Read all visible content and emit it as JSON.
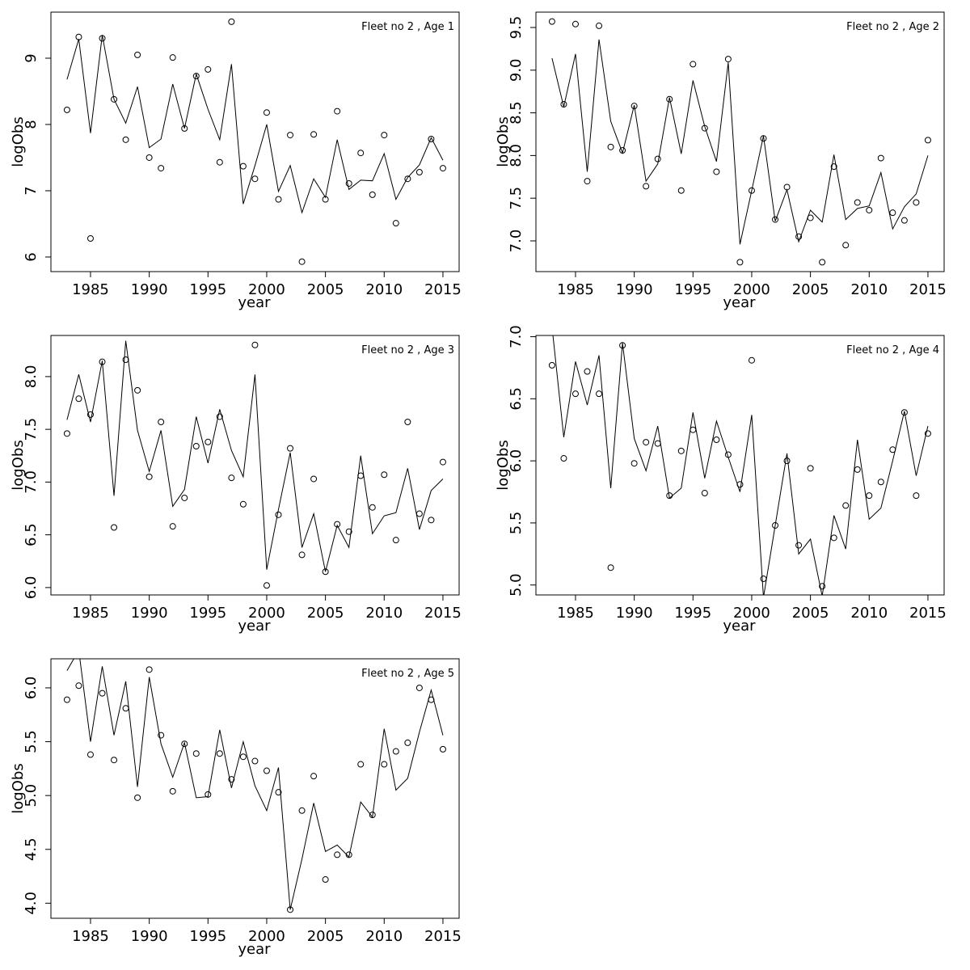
{
  "chart_data": [
    {
      "type": "line",
      "title": "Fleet no 2 , Age 1",
      "x_label": "year",
      "y_label": "logObs",
      "x": [
        1983,
        1984,
        1985,
        1986,
        1987,
        1988,
        1989,
        1990,
        1991,
        1992,
        1993,
        1994,
        1995,
        1996,
        1997,
        1998,
        1999,
        2000,
        2001,
        2002,
        2003,
        2004,
        2005,
        2006,
        2007,
        2008,
        2009,
        2010,
        2011,
        2012,
        2013,
        2014,
        2015
      ],
      "series": [
        {
          "style": "points",
          "color": "#000000",
          "values": [
            8.22,
            9.32,
            6.28,
            9.3,
            8.38,
            7.77,
            9.05,
            7.5,
            7.34,
            9.01,
            7.94,
            8.73,
            8.83,
            7.43,
            9.55,
            7.37,
            7.18,
            8.18,
            6.87,
            7.84,
            5.93,
            7.85,
            6.87,
            8.2,
            7.11,
            7.57,
            6.94,
            7.84,
            6.51,
            7.18,
            7.28,
            7.78,
            7.34
          ]
        },
        {
          "style": "line",
          "color": "#000000",
          "values": [
            8.68,
            9.29,
            7.87,
            9.35,
            8.38,
            8.02,
            8.57,
            7.65,
            7.78,
            8.61,
            7.94,
            8.76,
            8.23,
            7.77,
            8.91,
            6.8,
            7.38,
            8.0,
            6.99,
            7.38,
            6.67,
            7.18,
            6.9,
            7.77,
            7.02,
            7.16,
            7.15,
            7.56,
            6.87,
            7.2,
            7.39,
            7.8,
            7.46
          ]
        }
      ],
      "xlim": [
        1981.63,
        2016.38
      ],
      "xticks": [
        1985,
        1990,
        1995,
        2000,
        2005,
        2010,
        2015
      ],
      "ylim": [
        5.78,
        9.695
      ],
      "yticks": [
        6,
        7,
        8,
        9
      ]
    },
    {
      "type": "line",
      "title": "Fleet no 2 , Age 2",
      "x_label": "year",
      "y_label": "logObs",
      "x": [
        1983,
        1984,
        1985,
        1986,
        1987,
        1988,
        1989,
        1990,
        1991,
        1992,
        1993,
        1994,
        1995,
        1996,
        1997,
        1998,
        1999,
        2000,
        2001,
        2002,
        2003,
        2004,
        2005,
        2006,
        2007,
        2008,
        2009,
        2010,
        2011,
        2012,
        2013,
        2014,
        2015
      ],
      "series": [
        {
          "style": "points",
          "color": "#000000",
          "values": [
            9.57,
            8.6,
            9.54,
            7.7,
            9.52,
            8.1,
            8.06,
            8.58,
            7.64,
            7.96,
            8.66,
            7.59,
            9.07,
            8.32,
            7.81,
            9.13,
            6.75,
            7.59,
            8.2,
            7.25,
            7.63,
            7.05,
            7.27,
            6.75,
            7.87,
            6.95,
            7.45,
            7.36,
            7.97,
            7.33,
            7.24,
            7.45,
            8.18
          ]
        },
        {
          "style": "line",
          "color": "#000000",
          "values": [
            9.14,
            8.57,
            9.19,
            7.81,
            9.36,
            8.4,
            8.03,
            8.59,
            7.7,
            7.9,
            8.68,
            8.02,
            8.88,
            8.34,
            7.93,
            9.09,
            6.96,
            7.59,
            8.23,
            7.23,
            7.6,
            6.99,
            7.36,
            7.22,
            8.01,
            7.25,
            7.38,
            7.41,
            7.8,
            7.14,
            7.4,
            7.55,
            8.0
          ]
        }
      ],
      "xlim": [
        1981.63,
        2016.38
      ],
      "xticks": [
        1985,
        1990,
        1995,
        2000,
        2005,
        2010,
        2015
      ],
      "ylim": [
        6.64,
        9.68
      ],
      "yticks": [
        {
          "value": 7,
          "label": "7.0"
        },
        7.5,
        {
          "value": 8,
          "label": "8.0"
        },
        8.5,
        {
          "value": 9,
          "label": "9.0"
        },
        9.5
      ]
    },
    {
      "type": "line",
      "title": "Fleet no 2 , Age 3",
      "x_label": "year",
      "y_label": "logObs",
      "x": [
        1983,
        1984,
        1985,
        1986,
        1987,
        1988,
        1989,
        1990,
        1991,
        1992,
        1993,
        1994,
        1995,
        1996,
        1997,
        1998,
        1999,
        2000,
        2001,
        2002,
        2003,
        2004,
        2005,
        2006,
        2007,
        2008,
        2009,
        2010,
        2011,
        2012,
        2013,
        2014,
        2015
      ],
      "series": [
        {
          "style": "points",
          "color": "#000000",
          "values": [
            7.46,
            7.79,
            7.64,
            8.14,
            6.57,
            8.16,
            7.87,
            7.05,
            7.57,
            6.58,
            6.85,
            7.34,
            7.38,
            7.62,
            7.04,
            6.79,
            8.3,
            6.02,
            6.69,
            7.32,
            6.31,
            7.03,
            6.15,
            6.6,
            6.53,
            7.06,
            6.76,
            7.07,
            6.45,
            7.57,
            6.7,
            6.64,
            7.19
          ]
        },
        {
          "style": "line",
          "color": "#000000",
          "values": [
            7.59,
            8.02,
            7.57,
            8.15,
            6.87,
            8.34,
            7.49,
            7.1,
            7.49,
            6.77,
            6.93,
            7.62,
            7.18,
            7.69,
            7.3,
            7.05,
            8.02,
            6.17,
            6.74,
            7.28,
            6.38,
            6.7,
            6.15,
            6.59,
            6.38,
            7.25,
            6.51,
            6.68,
            6.71,
            7.13,
            6.55,
            6.92,
            7.03
          ]
        }
      ],
      "xlim": [
        1981.63,
        2016.38
      ],
      "xticks": [
        1985,
        1990,
        1995,
        2000,
        2005,
        2010,
        2015
      ],
      "ylim": [
        5.93,
        8.39
      ],
      "yticks": [
        {
          "value": 6,
          "label": "6.0"
        },
        6.5,
        {
          "value": 7,
          "label": "7.0"
        },
        7.5,
        {
          "value": 8,
          "label": "8.0"
        }
      ]
    },
    {
      "type": "line",
      "title": "Fleet no 2 , Age 4",
      "x_label": "year",
      "y_label": "logObs",
      "x": [
        1983,
        1984,
        1985,
        1986,
        1987,
        1988,
        1989,
        1990,
        1991,
        1992,
        1993,
        1994,
        1995,
        1996,
        1997,
        1998,
        1999,
        2000,
        2001,
        2002,
        2003,
        2004,
        2005,
        2006,
        2007,
        2008,
        2009,
        2010,
        2011,
        2012,
        2013,
        2014,
        2015
      ],
      "series": [
        {
          "style": "points",
          "color": "#000000",
          "values": [
            6.77,
            6.02,
            6.54,
            6.72,
            6.54,
            5.14,
            6.93,
            5.98,
            6.15,
            6.14,
            5.72,
            6.08,
            6.25,
            5.74,
            6.17,
            6.05,
            5.81,
            6.81,
            5.05,
            5.48,
            6.0,
            5.32,
            5.94,
            4.99,
            5.38,
            5.64,
            5.93,
            5.72,
            5.83,
            6.09,
            6.39,
            5.72,
            6.22
          ]
        },
        {
          "style": "line",
          "color": "#000000",
          "values": [
            7.08,
            6.19,
            6.8,
            6.45,
            6.85,
            5.78,
            6.95,
            6.18,
            5.92,
            6.28,
            5.7,
            5.78,
            6.39,
            5.86,
            6.32,
            6.03,
            5.75,
            6.37,
            4.9,
            5.48,
            6.06,
            5.25,
            5.37,
            4.91,
            5.56,
            5.29,
            6.17,
            5.53,
            5.62,
            6.0,
            6.4,
            5.88,
            6.28
          ]
        }
      ],
      "xlim": [
        1981.63,
        2016.38
      ],
      "xticks": [
        1985,
        1990,
        1995,
        2000,
        2005,
        2010,
        2015
      ],
      "ylim": [
        4.92,
        7.01
      ],
      "yticks": [
        {
          "value": 5,
          "label": "5.0"
        },
        5.5,
        {
          "value": 6,
          "label": "6.0"
        },
        6.5,
        {
          "value": 7,
          "label": "7.0"
        }
      ]
    },
    {
      "type": "line",
      "title": "Fleet no 2 , Age 5",
      "x_label": "year",
      "y_label": "logObs",
      "x": [
        1983,
        1984,
        1985,
        1986,
        1987,
        1988,
        1989,
        1990,
        1991,
        1992,
        1993,
        1994,
        1995,
        1996,
        1997,
        1998,
        1999,
        2000,
        2001,
        2002,
        2003,
        2004,
        2005,
        2006,
        2007,
        2008,
        2009,
        2010,
        2011,
        2012,
        2013,
        2014,
        2015
      ],
      "series": [
        {
          "style": "points",
          "color": "#000000",
          "values": [
            5.89,
            6.02,
            5.38,
            5.95,
            5.33,
            5.81,
            4.98,
            6.17,
            5.56,
            5.04,
            5.48,
            5.39,
            5.01,
            5.39,
            5.15,
            5.36,
            5.32,
            5.23,
            5.03,
            3.94,
            4.86,
            5.18,
            4.22,
            4.45,
            4.45,
            5.29,
            4.82,
            5.29,
            5.41,
            5.49,
            6.0,
            5.89,
            5.43
          ]
        },
        {
          "style": "line",
          "color": "#000000",
          "values": [
            6.16,
            6.35,
            5.5,
            6.2,
            5.56,
            6.06,
            5.08,
            6.1,
            5.48,
            5.17,
            5.49,
            4.98,
            4.99,
            5.61,
            5.07,
            5.5,
            5.09,
            4.86,
            5.26,
            3.94,
            4.41,
            4.93,
            4.48,
            4.54,
            4.43,
            4.94,
            4.8,
            5.62,
            5.05,
            5.16,
            5.59,
            5.98,
            5.56
          ]
        }
      ],
      "xlim": [
        1981.63,
        2016.38
      ],
      "xticks": [
        1985,
        1990,
        1995,
        2000,
        2005,
        2010,
        2015
      ],
      "ylim": [
        3.86,
        6.27
      ],
      "yticks": [
        {
          "value": 4,
          "label": "4.0"
        },
        4.5,
        {
          "value": 5,
          "label": "5.0"
        },
        5.5,
        {
          "value": 6,
          "label": "6.0"
        }
      ]
    }
  ]
}
